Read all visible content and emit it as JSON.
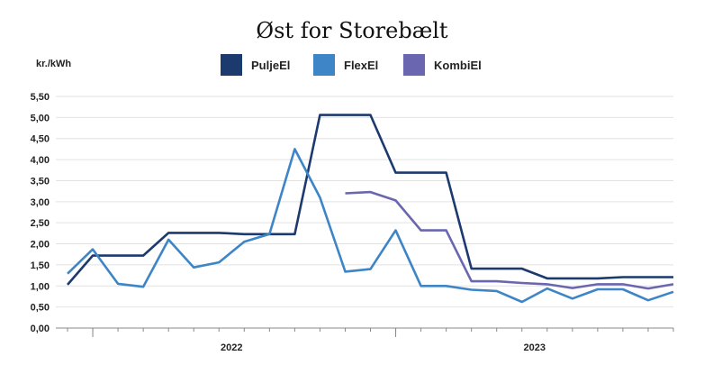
{
  "chart_data": {
    "type": "line",
    "title": "Øst for Storebælt",
    "ylabel": "kr./kWh",
    "ylim": [
      0,
      5.5
    ],
    "yticks": [
      "0,00",
      "0,50",
      "1,00",
      "1,50",
      "2,00",
      "2,50",
      "3,00",
      "3,50",
      "4,00",
      "4,50",
      "5,00",
      "5,50"
    ],
    "x_group_labels": [
      "2022",
      "2023"
    ],
    "grid": true,
    "legend_position": "top",
    "x": [
      0,
      1,
      2,
      3,
      4,
      5,
      6,
      7,
      8,
      9,
      10,
      11,
      12,
      13,
      14,
      15,
      16,
      17,
      18,
      19,
      20,
      21,
      22,
      23,
      24
    ],
    "series": [
      {
        "name": "PuljeEl",
        "color": "#1c3a6e",
        "values": [
          1.03,
          1.72,
          1.72,
          1.72,
          2.26,
          2.26,
          2.26,
          2.23,
          2.23,
          2.23,
          5.06,
          5.06,
          5.06,
          3.69,
          3.69,
          3.69,
          1.41,
          1.41,
          1.41,
          1.18,
          1.18,
          1.18,
          1.21,
          1.21,
          1.21
        ]
      },
      {
        "name": "FlexEl",
        "color": "#3d85c6",
        "values": [
          1.29,
          1.87,
          1.05,
          0.98,
          2.1,
          1.44,
          1.56,
          2.05,
          2.23,
          4.25,
          3.1,
          1.34,
          1.4,
          2.32,
          1.0,
          1.0,
          0.91,
          0.88,
          0.62,
          0.94,
          0.7,
          0.92,
          0.92,
          0.66,
          0.86
        ]
      },
      {
        "name": "KombiEl",
        "color": "#6b66b0",
        "values": [
          null,
          null,
          null,
          null,
          null,
          null,
          null,
          null,
          null,
          null,
          null,
          3.2,
          3.23,
          3.03,
          2.32,
          2.32,
          1.11,
          1.11,
          1.07,
          1.04,
          0.95,
          1.04,
          1.04,
          0.94,
          1.04
        ]
      }
    ]
  }
}
